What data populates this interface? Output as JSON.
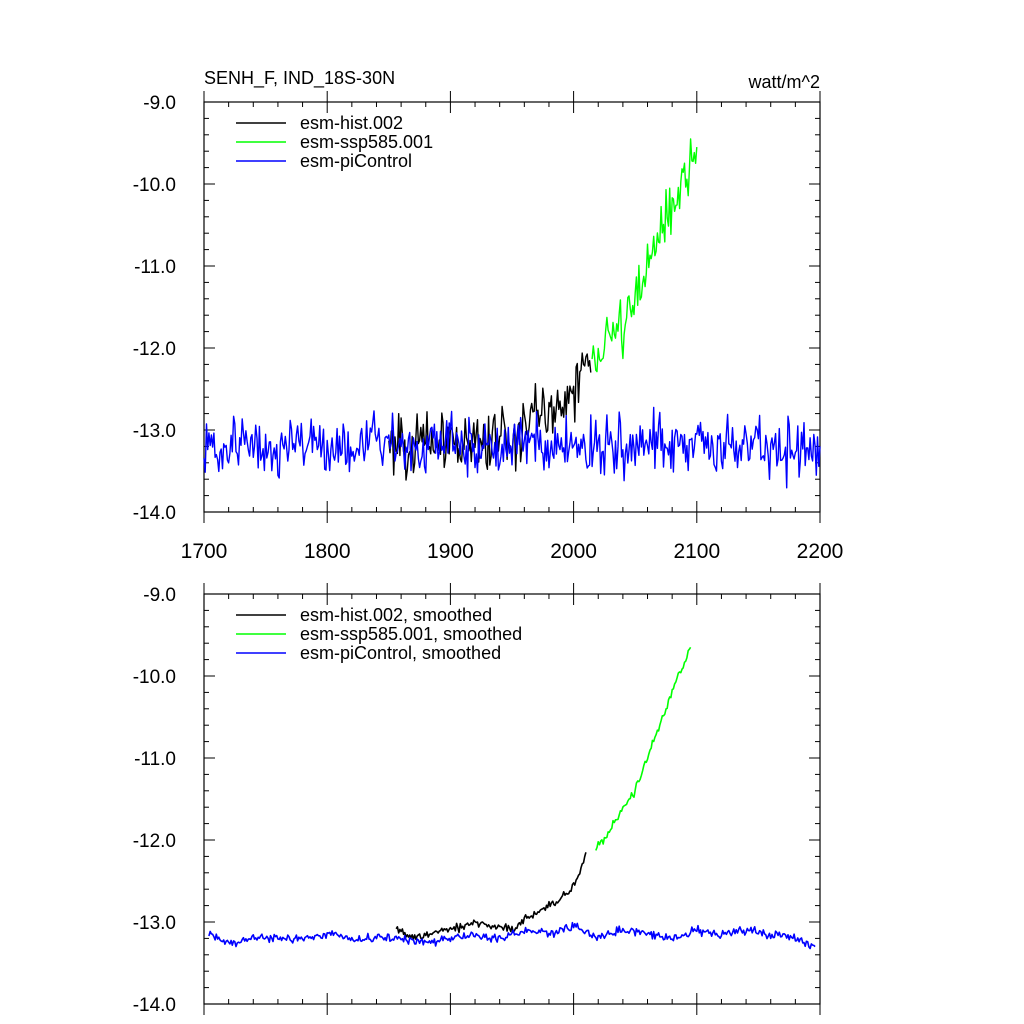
{
  "chart_data": [
    {
      "type": "line",
      "title": "SENH_F, IND_18S-30N",
      "units": "watt/m^2",
      "xlim": [
        1700,
        2200
      ],
      "ylim": [
        -14.0,
        -9.0
      ],
      "xticks": [
        1700,
        1800,
        1900,
        2000,
        2100,
        2200
      ],
      "xtick_labels": [
        "1700",
        "1800",
        "1900",
        "2000",
        "2100",
        "2200"
      ],
      "yticks": [
        -14.0,
        -13.0,
        -12.0,
        -11.0,
        -10.0,
        -9.0
      ],
      "ytick_labels": [
        "-14.0",
        "-13.0",
        "-12.0",
        "-11.0",
        "-10.0",
        "-9.0"
      ],
      "grid": false,
      "legend_position": "top-left",
      "series": [
        {
          "name": "esm-hist.002",
          "color": "#000000",
          "x": [
            1850,
            1860,
            1870,
            1880,
            1890,
            1900,
            1910,
            1920,
            1930,
            1940,
            1950,
            1960,
            1970,
            1980,
            1990,
            2000,
            2005,
            2010,
            2014
          ],
          "y": [
            -13.2,
            -13.05,
            -13.3,
            -13.1,
            -13.2,
            -13.05,
            -13.3,
            -13.0,
            -13.2,
            -12.95,
            -13.2,
            -13.0,
            -12.7,
            -12.85,
            -12.6,
            -12.55,
            -12.4,
            -12.1,
            -12.3
          ]
        },
        {
          "name": "esm-ssp585.001",
          "color": "#00ff00",
          "x": [
            2015,
            2020,
            2025,
            2030,
            2035,
            2040,
            2045,
            2050,
            2055,
            2060,
            2065,
            2070,
            2075,
            2080,
            2085,
            2090,
            2095,
            2100
          ],
          "y": [
            -12.1,
            -12.2,
            -11.9,
            -11.95,
            -11.7,
            -11.8,
            -11.5,
            -11.4,
            -11.25,
            -11.0,
            -10.9,
            -10.7,
            -10.5,
            -10.3,
            -10.1,
            -9.95,
            -9.8,
            -9.55
          ]
        },
        {
          "name": "esm-piControl",
          "color": "#0000ff",
          "x": [
            1700,
            1720,
            1740,
            1760,
            1780,
            1800,
            1820,
            1840,
            1860,
            1880,
            1900,
            1920,
            1940,
            1960,
            1980,
            2000,
            2020,
            2040,
            2060,
            2080,
            2100,
            2120,
            2140,
            2160,
            2180,
            2200
          ],
          "y": [
            -13.2,
            -13.25,
            -13.1,
            -13.3,
            -13.15,
            -13.2,
            -13.25,
            -13.1,
            -13.2,
            -13.3,
            -13.15,
            -13.2,
            -13.25,
            -13.1,
            -13.2,
            -13.2,
            -13.15,
            -13.25,
            -13.2,
            -13.1,
            -13.2,
            -13.25,
            -13.15,
            -13.2,
            -13.3,
            -13.2
          ]
        }
      ]
    },
    {
      "type": "line",
      "xlim": [
        1700,
        2200
      ],
      "ylim": [
        -14.0,
        -9.0
      ],
      "xticks": [
        1700,
        1800,
        1900,
        2000,
        2100,
        2200
      ],
      "yticks": [
        -14.0,
        -13.0,
        -12.0,
        -11.0,
        -10.0,
        -9.0
      ],
      "ytick_labels": [
        "-14.0",
        "-13.0",
        "-12.0",
        "-11.0",
        "-10.0",
        "-9.0"
      ],
      "grid": false,
      "legend_position": "top-left",
      "series": [
        {
          "name": "esm-hist.002, smoothed",
          "color": "#000000",
          "x": [
            1856,
            1870,
            1880,
            1890,
            1900,
            1910,
            1920,
            1930,
            1940,
            1950,
            1960,
            1970,
            1980,
            1990,
            2000,
            2005,
            2010
          ],
          "y": [
            -13.1,
            -13.2,
            -13.15,
            -13.12,
            -13.1,
            -13.05,
            -13.0,
            -13.05,
            -13.05,
            -13.1,
            -12.95,
            -12.9,
            -12.8,
            -12.7,
            -12.55,
            -12.4,
            -12.15
          ]
        },
        {
          "name": "esm-ssp585.001, smoothed",
          "color": "#00ff00",
          "x": [
            2018,
            2025,
            2030,
            2035,
            2040,
            2045,
            2050,
            2055,
            2060,
            2065,
            2070,
            2075,
            2080,
            2085,
            2090,
            2095
          ],
          "y": [
            -12.1,
            -12.0,
            -11.85,
            -11.75,
            -11.6,
            -11.5,
            -11.4,
            -11.2,
            -11.0,
            -10.8,
            -10.6,
            -10.4,
            -10.2,
            -10.0,
            -9.85,
            -9.65
          ]
        },
        {
          "name": "esm-piControl, smoothed",
          "color": "#0000ff",
          "x": [
            1704,
            1720,
            1740,
            1760,
            1780,
            1800,
            1820,
            1840,
            1860,
            1880,
            1900,
            1920,
            1940,
            1960,
            1980,
            2000,
            2020,
            2040,
            2060,
            2080,
            2100,
            2120,
            2140,
            2160,
            2180,
            2196
          ],
          "y": [
            -13.15,
            -13.25,
            -13.2,
            -13.2,
            -13.2,
            -13.15,
            -13.2,
            -13.2,
            -13.2,
            -13.25,
            -13.2,
            -13.15,
            -13.2,
            -13.1,
            -13.15,
            -13.05,
            -13.2,
            -13.1,
            -13.15,
            -13.2,
            -13.1,
            -13.15,
            -13.1,
            -13.15,
            -13.2,
            -13.3
          ]
        }
      ]
    }
  ]
}
